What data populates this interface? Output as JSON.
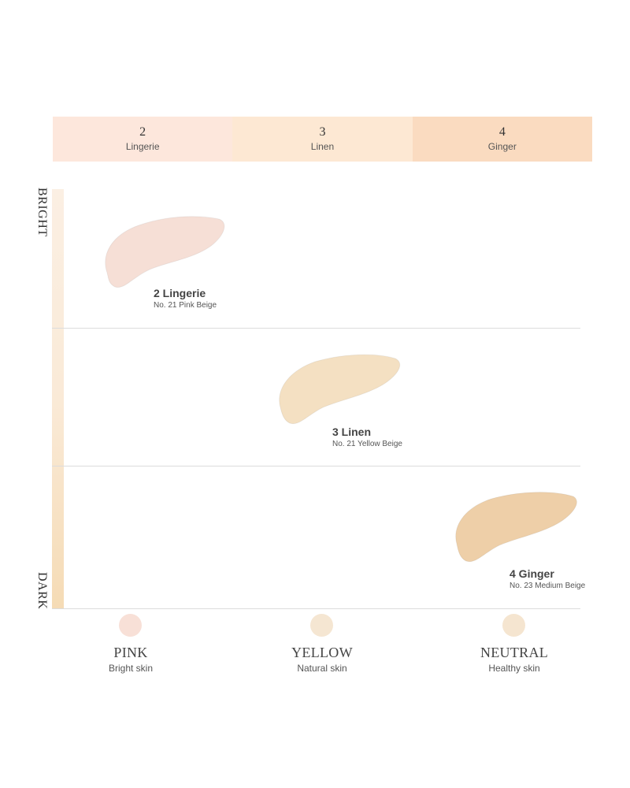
{
  "top_tabs": [
    {
      "number": "2",
      "name": "Lingerie",
      "color": "#fde7dc"
    },
    {
      "number": "3",
      "name": "Linen",
      "color": "#fde8d3"
    },
    {
      "number": "4",
      "name": "Ginger",
      "color": "#fadbc0"
    }
  ],
  "axis": {
    "top": "BRIGHT",
    "bottom": "DARK"
  },
  "shades": [
    {
      "title": "2 Lingerie",
      "subtitle": "No. 21 Pink Beige",
      "color": "#f6dfd6",
      "icon": "swatch-smear-icon"
    },
    {
      "title": "3 Linen",
      "subtitle": "No. 21 Yellow Beige",
      "color": "#f4e0c2",
      "icon": "swatch-smear-icon"
    },
    {
      "title": "4 Ginger",
      "subtitle": "No. 23 Medium Beige",
      "color": "#eecfa8",
      "icon": "swatch-smear-icon"
    }
  ],
  "categories": [
    {
      "name": "PINK",
      "desc": "Bright skin",
      "color": "#f8e0d7"
    },
    {
      "name": "YELLOW",
      "desc": "Natural skin",
      "color": "#f5e6d2"
    },
    {
      "name": "NEUTRAL",
      "desc": "Healthy skin",
      "color": "#f5e5d0"
    }
  ]
}
